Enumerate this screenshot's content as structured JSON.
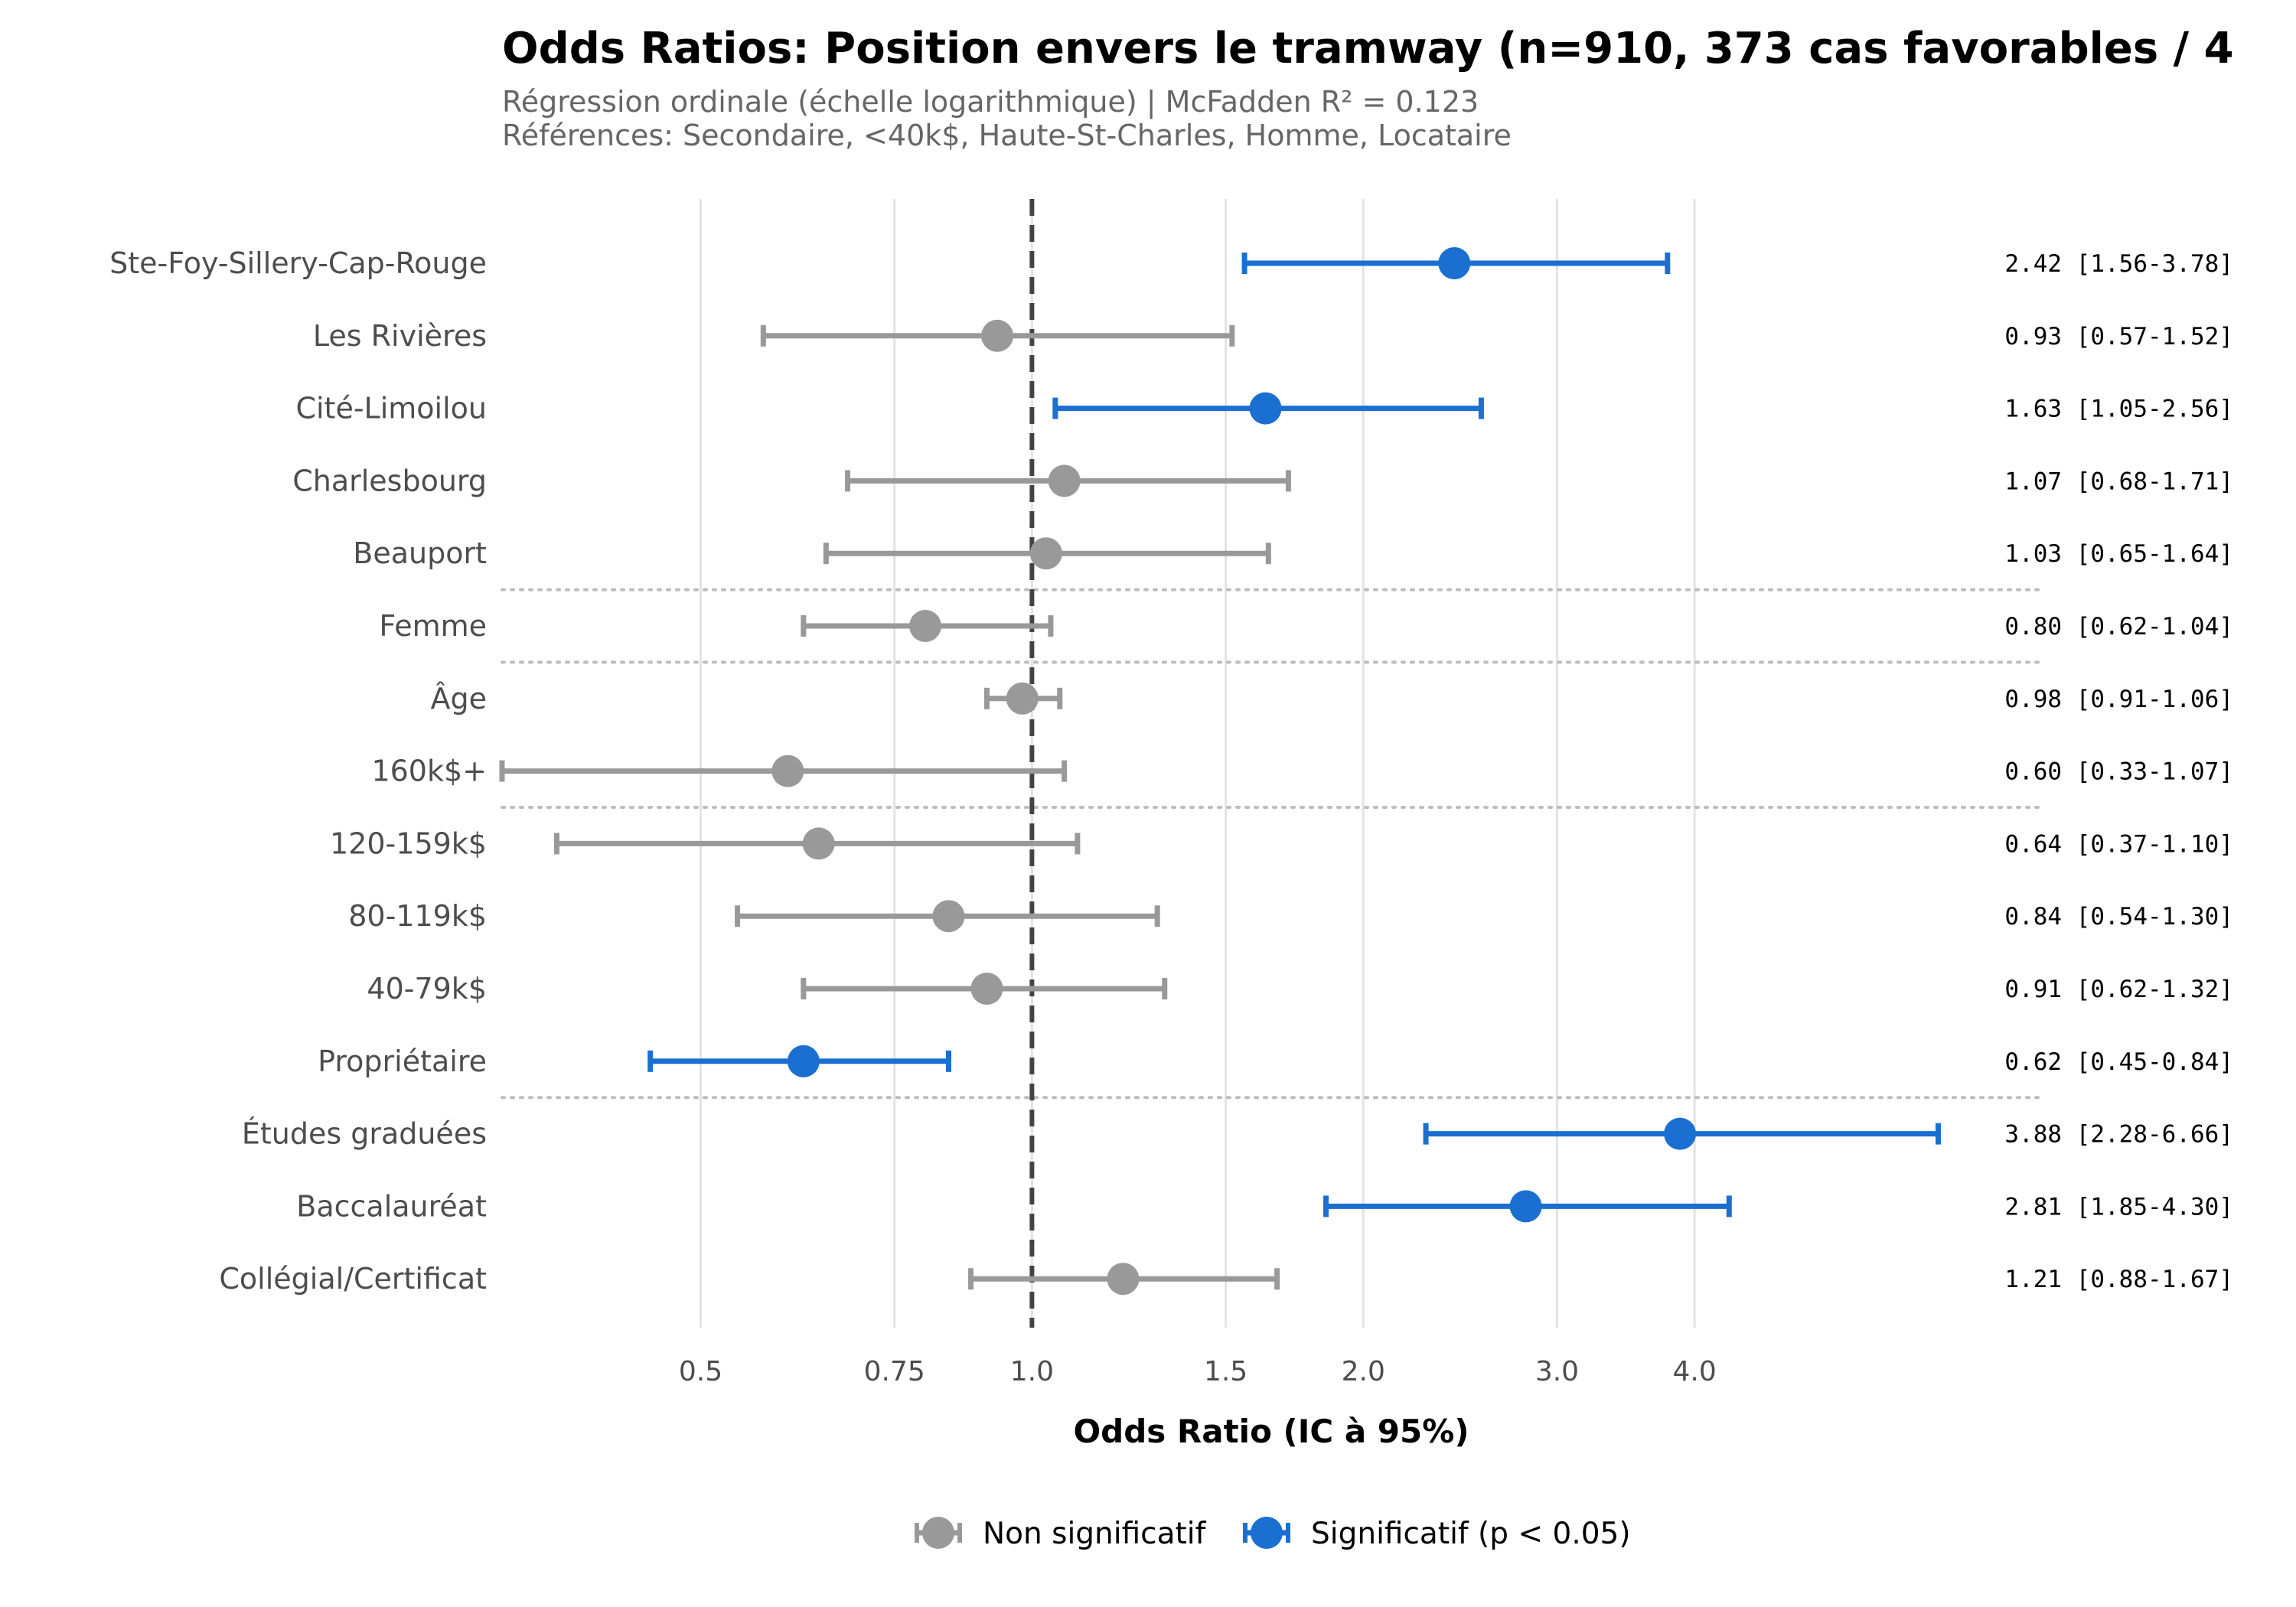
{
  "chart_data": {
    "type": "scatter",
    "subtype": "forest-plot",
    "title": "Odds Ratios: Position envers le tramway (n=910, 373 cas favorables / 4",
    "subtitle_lines": [
      "Régression ordinale (échelle logarithmique) | McFadden R² = 0.123",
      "Références: Secondaire, <40k$, Haute-St-Charles, Homme, Locataire"
    ],
    "xlabel": "Odds Ratio (IC à 95%)",
    "xscale": "log",
    "xlim": [
      0.33,
      8.3
    ],
    "xticks": [
      {
        "value": 0.5,
        "label": "0.5"
      },
      {
        "value": 0.75,
        "label": "0.75"
      },
      {
        "value": 1.0,
        "label": "1.0"
      },
      {
        "value": 1.5,
        "label": "1.5"
      },
      {
        "value": 2.0,
        "label": "2.0"
      },
      {
        "value": 3.0,
        "label": "3.0"
      },
      {
        "value": 4.0,
        "label": "4.0"
      }
    ],
    "reference_line": 1.0,
    "grid": "vertical",
    "colors": {
      "significant": "#1a6fd1",
      "non_significant": "#999999",
      "reference_line": "#444444",
      "grid": "#e3e3e3",
      "separator": "#bdbdbd"
    },
    "rows": [
      {
        "label": "Ste-Foy-Sillery-Cap-Rouge",
        "or": 2.42,
        "low": 1.56,
        "high": 3.78,
        "significant": true,
        "ci_text": "2.42 [1.56-3.78]"
      },
      {
        "label": "Les Rivières",
        "or": 0.93,
        "low": 0.57,
        "high": 1.52,
        "significant": false,
        "ci_text": "0.93 [0.57-1.52]"
      },
      {
        "label": "Cité-Limoilou",
        "or": 1.63,
        "low": 1.05,
        "high": 2.56,
        "significant": true,
        "ci_text": "1.63 [1.05-2.56]"
      },
      {
        "label": "Charlesbourg",
        "or": 1.07,
        "low": 0.68,
        "high": 1.71,
        "significant": false,
        "ci_text": "1.07 [0.68-1.71]"
      },
      {
        "label": "Beauport",
        "or": 1.03,
        "low": 0.65,
        "high": 1.64,
        "significant": false,
        "ci_text": "1.03 [0.65-1.64]"
      },
      {
        "label": "Femme",
        "or": 0.8,
        "low": 0.62,
        "high": 1.04,
        "significant": false,
        "ci_text": "0.80 [0.62-1.04]"
      },
      {
        "label": "Âge",
        "or": 0.98,
        "low": 0.91,
        "high": 1.06,
        "significant": false,
        "ci_text": "0.98 [0.91-1.06]"
      },
      {
        "label": "160k$+",
        "or": 0.6,
        "low": 0.33,
        "high": 1.07,
        "significant": false,
        "ci_text": "0.60 [0.33-1.07]"
      },
      {
        "label": "120-159k$",
        "or": 0.64,
        "low": 0.37,
        "high": 1.1,
        "significant": false,
        "ci_text": "0.64 [0.37-1.10]"
      },
      {
        "label": "80-119k$",
        "or": 0.84,
        "low": 0.54,
        "high": 1.3,
        "significant": false,
        "ci_text": "0.84 [0.54-1.30]"
      },
      {
        "label": "40-79k$",
        "or": 0.91,
        "low": 0.62,
        "high": 1.32,
        "significant": false,
        "ci_text": "0.91 [0.62-1.32]"
      },
      {
        "label": "Propriétaire",
        "or": 0.62,
        "low": 0.45,
        "high": 0.84,
        "significant": true,
        "ci_text": "0.62 [0.45-0.84]"
      },
      {
        "label": "Études graduées",
        "or": 3.88,
        "low": 2.28,
        "high": 6.66,
        "significant": true,
        "ci_text": "3.88 [2.28-6.66]"
      },
      {
        "label": "Baccalauréat",
        "or": 2.81,
        "low": 1.85,
        "high": 4.3,
        "significant": true,
        "ci_text": "2.81 [1.85-4.30]"
      },
      {
        "label": "Collégial/Certificat",
        "or": 1.21,
        "low": 0.88,
        "high": 1.67,
        "significant": false,
        "ci_text": "1.21 [0.88-1.67]"
      }
    ],
    "group_separators_after_rows": [
      4,
      5,
      7,
      11
    ],
    "legend": {
      "placement": "bottom-center",
      "entries": [
        {
          "label": "Non significatif",
          "key": "non_significant"
        },
        {
          "label": "Significatif (p < 0.05)",
          "key": "significant"
        }
      ]
    }
  }
}
